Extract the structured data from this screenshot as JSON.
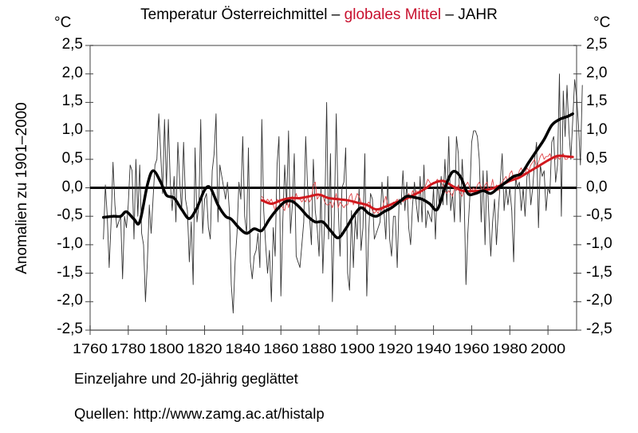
{
  "chart_data": {
    "type": "line",
    "title_parts": [
      {
        "text": "Temperatur Österreichmittel – ",
        "color": "#000000"
      },
      {
        "text": "globales Mittel",
        "color": "#c8102e"
      },
      {
        "text": " – JAHR",
        "color": "#000000"
      }
    ],
    "unit_left": "°C",
    "unit_right": "°C",
    "ylabel": "Anomalien zu 1901–2000",
    "xlabel": "Einzeljahre und 20-jährig geglättet",
    "source": "Quellen: http://www.zamg.ac.at/histalp",
    "xlim": [
      1760,
      2015
    ],
    "ylim": [
      -2.5,
      2.5
    ],
    "x_ticks": [
      "1760",
      "1780",
      "1800",
      "1820",
      "1840",
      "1860",
      "1880",
      "1900",
      "1920",
      "1940",
      "1960",
      "1980",
      "2000"
    ],
    "y_ticks": [
      "2,5",
      "2,0",
      "1,5",
      "1,0",
      "0,5",
      "0,0",
      "-0,5",
      "-1,0",
      "-1,5",
      "-2,0",
      "-2,5"
    ],
    "y_tick_values": [
      2.5,
      2.0,
      1.5,
      1.0,
      0.5,
      0.0,
      -0.5,
      -1.0,
      -1.5,
      -2.0,
      -2.5
    ],
    "colors": {
      "austria": "#000000",
      "global": "#d0191e",
      "axis": "#808080"
    },
    "series": [
      {
        "name": "Österreichmittel Einzeljahre",
        "x_start": 1767,
        "values": [
          -0.9,
          0.05,
          -0.5,
          -1.4,
          -0.6,
          0.45,
          -0.3,
          -0.7,
          -0.6,
          -0.5,
          -1.6,
          -0.5,
          -0.7,
          -0.3,
          0.4,
          0.3,
          -0.9,
          0.5,
          -0.5,
          0.4,
          -0.8,
          -1.0,
          -2.0,
          -1.3,
          -0.3,
          -0.8,
          -0.2,
          0.4,
          0.5,
          1.3,
          0.6,
          -0.1,
          1.2,
          0.0,
          1.2,
          0.1,
          -0.4,
          0.2,
          -0.6,
          0.8,
          0.1,
          -0.4,
          0.8,
          -0.2,
          -0.4,
          -1.3,
          -0.6,
          -1.7,
          0.7,
          -0.6,
          -0.3,
          1.2,
          -0.8,
          -0.2,
          -0.1,
          -0.7,
          -0.9,
          0.3,
          0.6,
          1.3,
          -0.6,
          0.4,
          0.2,
          0.0,
          -0.2,
          0.1,
          -0.4,
          -1.7,
          -2.2,
          -1.3,
          -0.8,
          0.1,
          -0.2,
          0.9,
          -0.5,
          -0.8,
          0.7,
          -1.3,
          -1.6,
          -1.2,
          -1.1,
          -0.8,
          -1.4,
          1.2,
          -0.4,
          -1.0,
          -1.5,
          -1.1,
          -2.0,
          -0.7,
          -1.2,
          0.4,
          0.9,
          -1.9,
          -0.6,
          0.4,
          -0.3,
          1.0,
          -0.8,
          -0.3,
          0.6,
          -1.2,
          -1.3,
          -1.4,
          -1.0,
          -0.6,
          0.9,
          0.0,
          -0.5,
          -1.0,
          0.5,
          -0.4,
          -0.7,
          -1.2,
          0.0,
          -1.5,
          -0.5,
          1.5,
          -0.9,
          0.6,
          -2.0,
          -0.5,
          1.3,
          -0.3,
          -1.2,
          0.0,
          0.1,
          0.7,
          -1.5,
          -1.8,
          -0.4,
          -1.4,
          -0.5,
          -0.9,
          0.0,
          -1.1,
          -0.7,
          0.6,
          -1.9,
          -0.8,
          -0.1,
          -0.2,
          -0.9,
          -0.8,
          -0.7,
          -0.6,
          0.1,
          -0.4,
          -0.9,
          0.2,
          -0.9,
          -1.2,
          -0.5,
          -0.5,
          -1.4,
          -0.2,
          -0.3,
          0.3,
          -0.4,
          0.1,
          -0.7,
          -1.0,
          -0.3,
          0.1,
          -0.3,
          -0.6,
          0.2,
          -0.6,
          0.4,
          -0.7,
          -0.4,
          -0.5,
          -0.6,
          0.0,
          -0.9,
          0.1,
          -0.3,
          0.2,
          -0.3,
          0.5,
          -0.3,
          0.9,
          -0.4,
          -0.1,
          -0.6,
          0.9,
          0.6,
          -0.6,
          0.5,
          -0.1,
          -1.7,
          -0.8,
          -0.2,
          0.8,
          1.0,
          1.0,
          0.9,
          0.5,
          -0.6,
          0.3,
          -1.0,
          0.3,
          -0.5,
          -1.2,
          -0.6,
          -0.2,
          -1.0,
          -0.4,
          0.1,
          0.6,
          -0.4,
          0.0,
          -0.3,
          0.0,
          -0.4,
          -1.3,
          0.2,
          0.0,
          0.1,
          -0.4,
          0.0,
          -0.5,
          0.2,
          0.3,
          -0.3,
          0.0,
          0.5,
          0.8,
          -0.7,
          0.4,
          0.2,
          0.3,
          -0.4,
          0.0,
          -0.1,
          0.8,
          0.9,
          0.1,
          0.4,
          2.0,
          -0.5,
          1.7,
          0.9,
          1.8,
          1.0,
          0.5,
          1.2,
          1.9,
          1.6,
          1.1,
          0.4,
          1.8
        ]
      },
      {
        "name": "Österreichmittel 20-jährig geglättet",
        "x": [
          1767,
          1772,
          1776,
          1779,
          1783,
          1786,
          1790,
          1793,
          1797,
          1800,
          1804,
          1808,
          1812,
          1816,
          1820,
          1823,
          1827,
          1831,
          1834,
          1838,
          1842,
          1846,
          1850,
          1854,
          1858,
          1862,
          1866,
          1870,
          1874,
          1878,
          1882,
          1886,
          1890,
          1894,
          1898,
          1902,
          1906,
          1910,
          1914,
          1918,
          1922,
          1926,
          1930,
          1934,
          1938,
          1942,
          1946,
          1950,
          1954,
          1958,
          1962,
          1966,
          1970,
          1974,
          1978,
          1982,
          1986,
          1990,
          1994,
          1998,
          2002,
          2006,
          2010,
          2013
        ],
        "values": [
          -0.52,
          -0.5,
          -0.5,
          -0.42,
          -0.55,
          -0.6,
          0.05,
          0.3,
          0.1,
          -0.13,
          -0.18,
          -0.38,
          -0.54,
          -0.35,
          -0.04,
          0.0,
          -0.3,
          -0.5,
          -0.55,
          -0.7,
          -0.8,
          -0.72,
          -0.75,
          -0.55,
          -0.38,
          -0.25,
          -0.24,
          -0.35,
          -0.5,
          -0.6,
          -0.6,
          -0.75,
          -0.88,
          -0.72,
          -0.5,
          -0.35,
          -0.45,
          -0.5,
          -0.42,
          -0.35,
          -0.25,
          -0.15,
          -0.17,
          -0.2,
          -0.28,
          -0.38,
          0.0,
          0.28,
          0.2,
          -0.1,
          -0.1,
          -0.05,
          -0.1,
          0.0,
          0.1,
          0.2,
          0.25,
          0.45,
          0.65,
          0.85,
          1.1,
          1.2,
          1.25,
          1.3
        ]
      },
      {
        "name": "globales Mittel Einzeljahre",
        "x_start": 1850,
        "values": [
          -0.15,
          -0.2,
          -0.25,
          -0.2,
          -0.25,
          -0.2,
          -0.3,
          -0.4,
          -0.2,
          -0.25,
          -0.3,
          -0.35,
          -0.4,
          -0.2,
          -0.35,
          -0.2,
          -0.15,
          -0.25,
          -0.1,
          -0.2,
          -0.2,
          -0.25,
          -0.2,
          -0.25,
          -0.15,
          -0.25,
          -0.2,
          0.05,
          0.1,
          -0.2,
          -0.15,
          -0.1,
          -0.15,
          -0.25,
          -0.3,
          -0.3,
          -0.25,
          -0.35,
          -0.25,
          -0.1,
          -0.35,
          -0.25,
          -0.3,
          -0.35,
          -0.3,
          -0.3,
          -0.15,
          -0.1,
          -0.3,
          -0.2,
          -0.1,
          -0.15,
          -0.25,
          -0.3,
          -0.35,
          -0.3,
          -0.25,
          -0.3,
          -0.4,
          -0.45,
          -0.4,
          -0.45,
          -0.35,
          -0.4,
          -0.25,
          -0.15,
          -0.3,
          -0.4,
          -0.3,
          -0.25,
          -0.25,
          -0.2,
          -0.25,
          -0.2,
          -0.25,
          -0.15,
          -0.2,
          -0.1,
          -0.2,
          -0.05,
          -0.1,
          -0.05,
          -0.1,
          -0.1,
          -0.05,
          0.0,
          0.05,
          0.15,
          0.1,
          0.05,
          0.1,
          0.1,
          0.15,
          0.1,
          0.1,
          0.05,
          -0.05,
          -0.1,
          -0.05,
          -0.1,
          -0.15,
          0.0,
          -0.05,
          0.05,
          -0.1,
          -0.15,
          0.0,
          0.05,
          0.1,
          0.0,
          -0.05,
          0.0,
          -0.05,
          0.05,
          0.1,
          0.0,
          -0.05,
          0.05,
          0.1,
          -0.05,
          0.0,
          0.15,
          -0.05,
          0.05,
          -0.05,
          0.05,
          0.1,
          0.15,
          0.2,
          0.1,
          0.25,
          0.3,
          0.15,
          0.2,
          0.15,
          0.3,
          0.35,
          0.25,
          0.25,
          0.35,
          0.3,
          0.4,
          0.45,
          0.5,
          0.35,
          0.45,
          0.55,
          0.6,
          0.5,
          0.55,
          0.55,
          0.6,
          0.5,
          0.55,
          0.5,
          0.55,
          0.5,
          0.55,
          0.6,
          0.5,
          0.5,
          0.55
        ]
      },
      {
        "name": "globales Mittel 20-jährig geglättet",
        "x": [
          1850,
          1855,
          1860,
          1865,
          1870,
          1875,
          1880,
          1885,
          1890,
          1895,
          1900,
          1905,
          1910,
          1915,
          1920,
          1925,
          1930,
          1935,
          1940,
          1945,
          1950,
          1955,
          1960,
          1965,
          1970,
          1975,
          1980,
          1985,
          1990,
          1995,
          2000,
          2005,
          2010,
          2013
        ],
        "values": [
          -0.22,
          -0.28,
          -0.22,
          -0.18,
          -0.18,
          -0.15,
          -0.12,
          -0.18,
          -0.2,
          -0.22,
          -0.26,
          -0.3,
          -0.38,
          -0.33,
          -0.26,
          -0.2,
          -0.12,
          -0.03,
          0.08,
          0.12,
          0.03,
          -0.05,
          -0.06,
          -0.05,
          -0.02,
          0.04,
          0.12,
          0.18,
          0.28,
          0.38,
          0.48,
          0.56,
          0.55,
          0.54
        ]
      }
    ]
  }
}
